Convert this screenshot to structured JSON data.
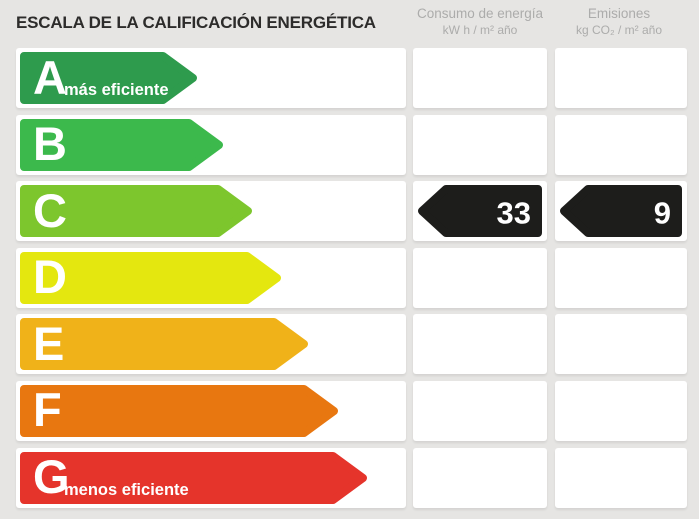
{
  "header": {
    "title": "ESCALA DE LA CALIFICACIÓN ENERGÉTICA",
    "columns": [
      {
        "id": "consumo",
        "label": "Consumo de energía",
        "units": "kW h / m² año"
      },
      {
        "id": "emisiones",
        "label": "Emisiones",
        "units": "kg CO₂ / m² año"
      }
    ]
  },
  "scale": {
    "rows": [
      {
        "letter": "A",
        "note": "más eficiente",
        "color": "#2e9b4d",
        "arrow_tip": 177
      },
      {
        "letter": "B",
        "note": "",
        "color": "#3cb94c",
        "arrow_tip": 203
      },
      {
        "letter": "C",
        "note": "",
        "color": "#7dc62d",
        "arrow_tip": 232
      },
      {
        "letter": "D",
        "note": "",
        "color": "#e4e70f",
        "arrow_tip": 261
      },
      {
        "letter": "E",
        "note": "",
        "color": "#f0b219",
        "arrow_tip": 288
      },
      {
        "letter": "F",
        "note": "",
        "color": "#e87710",
        "arrow_tip": 318
      },
      {
        "letter": "G",
        "note": "menos eficiente",
        "color": "#e5342b",
        "arrow_tip": 347
      }
    ]
  },
  "rating": {
    "letter": "C",
    "consumo_value": "33",
    "emisiones_value": "9",
    "badge_color": "#1d1d1b"
  },
  "colors": {
    "background": "#e6e5e3",
    "cell": "#ffffff",
    "title_text": "#2d2c2b",
    "column_header_text": "#acacab",
    "value_text": "#ffffff"
  },
  "chart_data": {
    "type": "table",
    "title": "ESCALA DE LA CALIFICACIÓN ENERGÉTICA",
    "categories": [
      "A",
      "B",
      "C",
      "D",
      "E",
      "F",
      "G"
    ],
    "rating": "C",
    "series": [
      {
        "name": "Consumo de energía (kW h / m² año)",
        "values": [
          null,
          null,
          33,
          null,
          null,
          null,
          null
        ]
      },
      {
        "name": "Emisiones (kg CO₂ / m² año)",
        "values": [
          null,
          null,
          9,
          null,
          null,
          null,
          null
        ]
      }
    ],
    "annotations": [
      "A = más eficiente",
      "G = menos eficiente"
    ],
    "layout": "horizontal arrow bars lengthening from A to G; black left-pointing value badges on rated row C"
  }
}
